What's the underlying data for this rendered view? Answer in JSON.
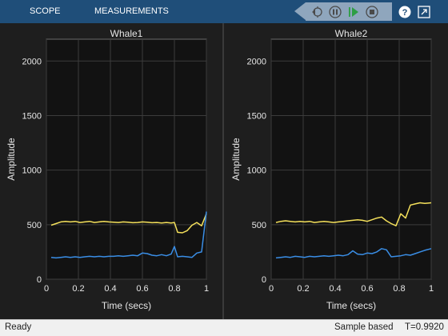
{
  "toolbar": {
    "tabs": [
      {
        "label": "SCOPE"
      },
      {
        "label": "MEASUREMENTS"
      }
    ],
    "buttons": [
      {
        "name": "step-back-icon"
      },
      {
        "name": "pause-icon"
      },
      {
        "name": "play-icon"
      },
      {
        "name": "stop-icon"
      },
      {
        "name": "help-icon",
        "glyph": "?"
      },
      {
        "name": "expand-icon"
      }
    ],
    "colors": {
      "bar": "#1f4e79",
      "controls": "#8fa6bd",
      "play": "#2e9e44"
    }
  },
  "colors": {
    "series_blue": "#3a8ee6",
    "series_yellow": "#f5e15b",
    "axes_bg": "#121212",
    "figure_bg": "#1e1e1e"
  },
  "chart_data": [
    {
      "type": "line",
      "title": "Whale1",
      "xlabel": "Time (secs)",
      "ylabel": "Amplitude",
      "xlim": [
        0,
        1
      ],
      "ylim": [
        0,
        2200
      ],
      "xticks": [
        "0",
        "0.2",
        "0.4",
        "0.6",
        "0.8",
        "1"
      ],
      "yticks": [
        "0",
        "500",
        "1000",
        "1500",
        "2000"
      ],
      "grid": true,
      "series": [
        {
          "color": "#f5e15b",
          "x": [
            0.03,
            0.06,
            0.09,
            0.12,
            0.15,
            0.18,
            0.21,
            0.24,
            0.27,
            0.3,
            0.33,
            0.36,
            0.39,
            0.42,
            0.45,
            0.48,
            0.51,
            0.54,
            0.57,
            0.6,
            0.63,
            0.66,
            0.69,
            0.72,
            0.75,
            0.78,
            0.8,
            0.82,
            0.85,
            0.88,
            0.91,
            0.94,
            0.97,
            1.0
          ],
          "y": [
            495,
            510,
            525,
            530,
            525,
            530,
            520,
            525,
            530,
            520,
            525,
            530,
            525,
            522,
            520,
            525,
            522,
            518,
            520,
            525,
            522,
            518,
            520,
            515,
            520,
            515,
            520,
            430,
            425,
            445,
            495,
            520,
            490,
            600
          ]
        },
        {
          "color": "#3a8ee6",
          "x": [
            0.03,
            0.06,
            0.09,
            0.12,
            0.15,
            0.18,
            0.21,
            0.24,
            0.27,
            0.3,
            0.33,
            0.36,
            0.39,
            0.42,
            0.45,
            0.48,
            0.51,
            0.54,
            0.57,
            0.6,
            0.63,
            0.66,
            0.69,
            0.72,
            0.75,
            0.78,
            0.8,
            0.82,
            0.85,
            0.88,
            0.91,
            0.94,
            0.97,
            1.0
          ],
          "y": [
            200,
            195,
            200,
            205,
            200,
            205,
            200,
            205,
            210,
            205,
            210,
            205,
            210,
            210,
            215,
            210,
            215,
            220,
            215,
            240,
            235,
            220,
            215,
            225,
            215,
            230,
            300,
            205,
            210,
            205,
            200,
            240,
            250,
            620
          ]
        }
      ]
    },
    {
      "type": "line",
      "title": "Whale2",
      "xlabel": "Time (secs)",
      "ylabel": "Amplitude",
      "xlim": [
        0,
        1
      ],
      "ylim": [
        0,
        2200
      ],
      "xticks": [
        "0",
        "0.2",
        "0.4",
        "0.6",
        "0.8",
        "1"
      ],
      "yticks": [
        "0",
        "500",
        "1000",
        "1500",
        "2000"
      ],
      "grid": true,
      "series": [
        {
          "color": "#f5e15b",
          "x": [
            0.03,
            0.06,
            0.09,
            0.12,
            0.15,
            0.18,
            0.21,
            0.24,
            0.27,
            0.3,
            0.33,
            0.36,
            0.39,
            0.42,
            0.45,
            0.48,
            0.51,
            0.54,
            0.57,
            0.6,
            0.63,
            0.66,
            0.69,
            0.72,
            0.75,
            0.78,
            0.81,
            0.84,
            0.87,
            0.9,
            0.93,
            0.96,
            1.0
          ],
          "y": [
            520,
            530,
            535,
            530,
            525,
            530,
            525,
            530,
            520,
            525,
            530,
            525,
            520,
            525,
            530,
            535,
            540,
            545,
            540,
            530,
            545,
            560,
            570,
            535,
            510,
            490,
            600,
            560,
            680,
            690,
            700,
            695,
            700
          ]
        },
        {
          "color": "#3a8ee6",
          "x": [
            0.03,
            0.06,
            0.09,
            0.12,
            0.15,
            0.18,
            0.21,
            0.24,
            0.27,
            0.3,
            0.33,
            0.36,
            0.39,
            0.42,
            0.45,
            0.48,
            0.51,
            0.54,
            0.57,
            0.6,
            0.63,
            0.66,
            0.69,
            0.72,
            0.75,
            0.78,
            0.81,
            0.84,
            0.87,
            0.9,
            0.93,
            0.96,
            1.0
          ],
          "y": [
            195,
            200,
            205,
            200,
            210,
            205,
            200,
            210,
            205,
            210,
            215,
            210,
            215,
            220,
            215,
            225,
            260,
            230,
            225,
            240,
            235,
            250,
            280,
            270,
            205,
            210,
            215,
            225,
            220,
            235,
            250,
            265,
            280
          ]
        }
      ]
    }
  ],
  "status": {
    "ready": "Ready",
    "mode": "Sample based",
    "time": "T=0.9920"
  }
}
